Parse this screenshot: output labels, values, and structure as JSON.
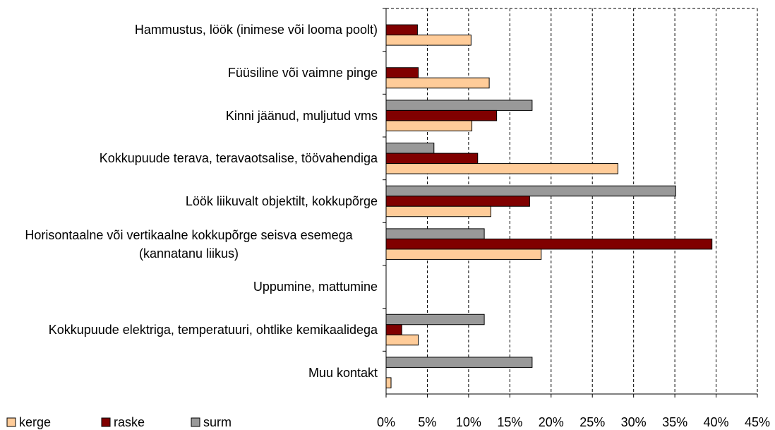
{
  "chart_data": {
    "type": "bar",
    "orientation": "horizontal",
    "categories": [
      "Hammustus, löök (inimese või looma poolt)",
      "Füüsiline või vaimne pinge",
      "Kinni jäänud, muljutud vms",
      "Kokkupuude terava, teravaotsalise, töövahendiga",
      "Löök liikuvalt objektilt, kokkupõrge",
      "Horisontaalne või vertikaalne kokkupõrge seisva esemega (kannatanu liikus)",
      "Uppumine, mattumine",
      "Kokkupuude elektriga, temperatuuri, ohtlike kemikaalidega",
      "Muu kontakt"
    ],
    "series": [
      {
        "name": "kerge",
        "color": "#ffcc99",
        "values": [
          10.3,
          12.5,
          10.4,
          28.1,
          12.7,
          18.8,
          0,
          3.9,
          0.6
        ]
      },
      {
        "name": "raske",
        "color": "#800000",
        "values": [
          3.8,
          3.9,
          13.4,
          11.1,
          17.4,
          39.5,
          0,
          1.9,
          0
        ]
      },
      {
        "name": "surm",
        "color": "#999999",
        "values": [
          0,
          0,
          17.7,
          5.8,
          35.1,
          11.9,
          0,
          11.9,
          17.7
        ]
      }
    ],
    "xlim": [
      0,
      45
    ],
    "xticks": [
      {
        "value": 0,
        "label": "0%"
      },
      {
        "value": 5,
        "label": "5%"
      },
      {
        "value": 10,
        "label": "10%"
      },
      {
        "value": 15,
        "label": "15%"
      },
      {
        "value": 20,
        "label": "20%"
      },
      {
        "value": 25,
        "label": "25%"
      },
      {
        "value": 30,
        "label": "30%"
      },
      {
        "value": 35,
        "label": "35%"
      },
      {
        "value": 40,
        "label": "40%"
      },
      {
        "value": 45,
        "label": "45%"
      }
    ],
    "grid": true,
    "legend": "bottom-left"
  }
}
